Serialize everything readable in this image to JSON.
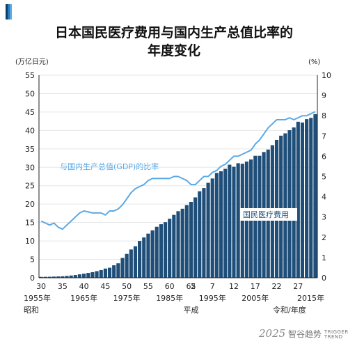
{
  "title_line1": "日本国民医疗费用与国内生产总值比率的",
  "title_line2": "年度变化",
  "left_unit": "(万亿日元)",
  "right_unit": "(%)",
  "brand": {
    "number": "2025",
    "name": "智谷趋势",
    "sub1": "TRIGGER",
    "sub2": "TREND"
  },
  "colors": {
    "bar": "#1f4e79",
    "line": "#5aa9e6",
    "bar_edge": "#ffffff"
  },
  "chart_data": {
    "type": "bar",
    "title": "日本国民医疗费用与国内生产总值比率的年度变化",
    "xlabel": "",
    "ylabel_left": "(万亿日元)",
    "ylabel_right": "(%)",
    "ylim_left": [
      0,
      55
    ],
    "ylim_right": [
      0,
      10
    ],
    "left_ticks": [
      "0",
      "5",
      "10",
      "15",
      "20",
      "25",
      "30",
      "35",
      "40",
      "45",
      "50",
      "55"
    ],
    "right_ticks": [
      "0",
      "1",
      "2",
      "3",
      "4",
      "5",
      "6",
      "7",
      "8",
      "9",
      "10"
    ],
    "x_tick_labels": [
      {
        "label": "30",
        "year": 1955
      },
      {
        "label": "35",
        "year": 1960
      },
      {
        "label": "40",
        "year": 1965
      },
      {
        "label": "45",
        "year": 1970
      },
      {
        "label": "50",
        "year": 1975
      },
      {
        "label": "55",
        "year": 1980
      },
      {
        "label": "60",
        "year": 1985
      },
      {
        "label": "65",
        "year": 1990
      },
      {
        "label": "2",
        "year": 1990.5
      },
      {
        "label": "7",
        "year": 1995
      },
      {
        "label": "12",
        "year": 2000
      },
      {
        "label": "17",
        "year": 2005
      },
      {
        "label": "22",
        "year": 2010
      },
      {
        "label": "27",
        "year": 2015
      }
    ],
    "era_year_labels": [
      {
        "label": "1955年",
        "year": 1955
      },
      {
        "label": "1965年",
        "year": 1965
      },
      {
        "label": "1975年",
        "year": 1975
      },
      {
        "label": "1985年",
        "year": 1985
      },
      {
        "label": "1995年",
        "year": 1995
      },
      {
        "label": "2005年",
        "year": 2005
      },
      {
        "label": "2015年",
        "year": 2015
      }
    ],
    "era_labels": [
      {
        "label": "昭和",
        "year": 1955
      },
      {
        "label": "平成",
        "year": 1990
      },
      {
        "label": "令和/年度",
        "year": 2012
      }
    ],
    "series": [
      {
        "name": "国民医疗费用",
        "axis": "left",
        "x": [
          1955,
          1956,
          1957,
          1958,
          1959,
          1960,
          1961,
          1962,
          1963,
          1964,
          1965,
          1966,
          1967,
          1968,
          1969,
          1970,
          1971,
          1972,
          1973,
          1974,
          1975,
          1976,
          1977,
          1978,
          1979,
          1980,
          1981,
          1982,
          1983,
          1984,
          1985,
          1986,
          1987,
          1988,
          1989,
          1990,
          1991,
          1992,
          1993,
          1994,
          1995,
          1996,
          1997,
          1998,
          1999,
          2000,
          2001,
          2002,
          2003,
          2004,
          2005,
          2006,
          2007,
          2008,
          2009,
          2010,
          2011,
          2012,
          2013,
          2014,
          2015,
          2016,
          2017,
          2018,
          2019
        ],
        "values": [
          0.24,
          0.26,
          0.28,
          0.32,
          0.36,
          0.41,
          0.51,
          0.61,
          0.74,
          0.94,
          1.12,
          1.31,
          1.52,
          1.8,
          2.08,
          2.5,
          2.73,
          3.39,
          3.93,
          5.38,
          6.48,
          7.68,
          8.56,
          10.0,
          10.95,
          11.98,
          12.87,
          13.85,
          14.54,
          15.09,
          16.02,
          17.07,
          18.08,
          18.75,
          19.73,
          20.6,
          21.83,
          23.48,
          24.36,
          25.79,
          26.96,
          28.45,
          28.91,
          29.58,
          30.7,
          30.14,
          31.1,
          30.95,
          31.54,
          32.11,
          33.13,
          33.13,
          34.14,
          34.81,
          36.0,
          37.42,
          38.58,
          39.21,
          40.06,
          40.81,
          42.36,
          42.14,
          43.07,
          43.4,
          44.4
        ]
      },
      {
        "name": "与国内生产总值(GDP)的比率",
        "axis": "right",
        "x": [
          1955,
          1956,
          1957,
          1958,
          1959,
          1960,
          1961,
          1962,
          1963,
          1964,
          1965,
          1966,
          1967,
          1968,
          1969,
          1970,
          1971,
          1972,
          1973,
          1974,
          1975,
          1976,
          1977,
          1978,
          1979,
          1980,
          1981,
          1982,
          1983,
          1984,
          1985,
          1986,
          1987,
          1988,
          1989,
          1990,
          1991,
          1992,
          1993,
          1994,
          1995,
          1996,
          1997,
          1998,
          1999,
          2000,
          2001,
          2002,
          2003,
          2004,
          2005,
          2006,
          2007,
          2008,
          2009,
          2010,
          2011,
          2012,
          2013,
          2014,
          2015,
          2016,
          2017,
          2018,
          2019
        ],
        "values": [
          2.8,
          2.7,
          2.6,
          2.7,
          2.5,
          2.4,
          2.6,
          2.8,
          3.0,
          3.2,
          3.3,
          3.25,
          3.2,
          3.2,
          3.2,
          3.1,
          3.3,
          3.3,
          3.4,
          3.6,
          3.9,
          4.2,
          4.4,
          4.5,
          4.6,
          4.8,
          4.9,
          4.9,
          4.9,
          4.9,
          4.9,
          5.0,
          5.0,
          4.9,
          4.8,
          4.6,
          4.6,
          4.8,
          5.0,
          5.0,
          5.2,
          5.3,
          5.5,
          5.6,
          5.8,
          6.0,
          6.0,
          6.1,
          6.2,
          6.3,
          6.6,
          6.8,
          7.1,
          7.4,
          7.6,
          7.8,
          7.8,
          7.8,
          7.9,
          7.8,
          7.9,
          8.0,
          8.0,
          8.1,
          8.2
        ]
      }
    ],
    "annotations": [
      {
        "text": "与国内生产总值(GDP)的比率",
        "series": 1
      },
      {
        "text": "国民医疗费用",
        "series": 0
      }
    ]
  }
}
